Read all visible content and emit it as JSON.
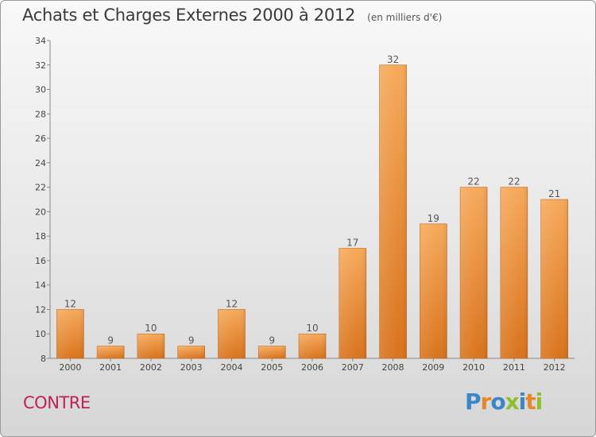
{
  "header": {
    "title": "Achats et Charges Externes 2000 à 2012",
    "subtitle": "(en milliers d'€)"
  },
  "commune": "CONTRE",
  "logo": {
    "text": "Proxiti",
    "letters": [
      "P",
      "r",
      "o",
      "x",
      "i",
      "t",
      "i"
    ],
    "colors": [
      "#3a86c8",
      "#e8862a",
      "#3a86c8",
      "#8dbf2e",
      "#3a86c8",
      "#e8862a",
      "#8dbf2e"
    ]
  },
  "colors": {
    "bar_light": "#f6a95a",
    "bar_dark": "#d9731c",
    "commune_text": "#c0205a"
  },
  "chart_data": {
    "type": "bar",
    "title": "Achats et Charges Externes 2000 à 2012",
    "subtitle": "(en milliers d'€)",
    "xlabel": "",
    "ylabel": "",
    "categories": [
      "2000",
      "2001",
      "2002",
      "2003",
      "2004",
      "2005",
      "2006",
      "2007",
      "2008",
      "2009",
      "2010",
      "2011",
      "2012"
    ],
    "values": [
      12,
      9,
      10,
      9,
      12,
      9,
      10,
      17,
      32,
      19,
      22,
      22,
      21
    ],
    "ylim": [
      8,
      34
    ],
    "yticks": [
      8,
      10,
      12,
      14,
      16,
      18,
      20,
      22,
      24,
      26,
      28,
      30,
      32,
      34
    ],
    "grid": false,
    "legend": "none"
  }
}
